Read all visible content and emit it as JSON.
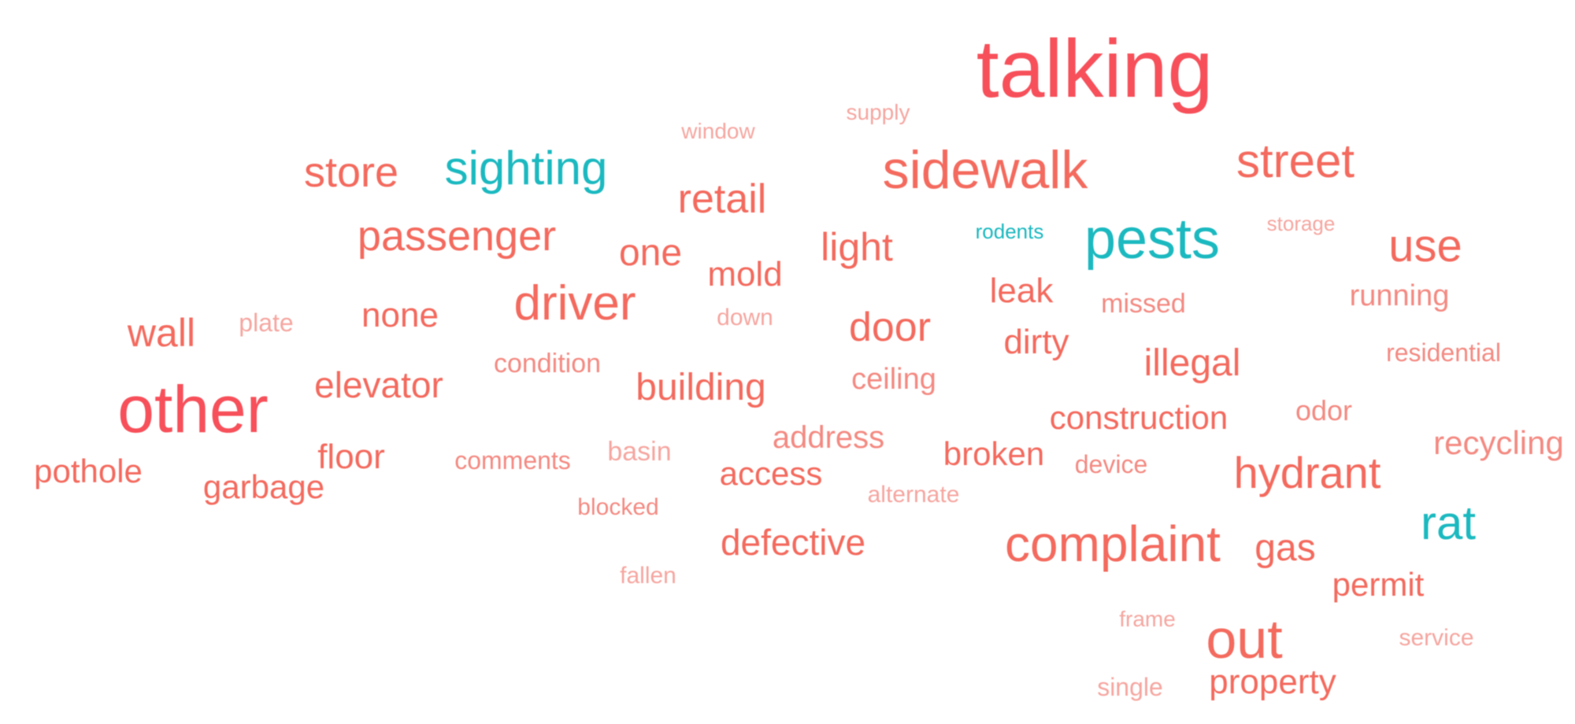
{
  "colors": {
    "red_strong": "#f7505a",
    "red": "#f46a5e",
    "red_light": "#f48a82",
    "red_faint": "#f6a6a0",
    "teal": "#1bb9c0",
    "background": "#ffffff"
  },
  "words": [
    {
      "text": "talking",
      "color": "red_strong"
    },
    {
      "text": "window",
      "color": "red_faint"
    },
    {
      "text": "supply",
      "color": "red_faint"
    },
    {
      "text": "store",
      "color": "red"
    },
    {
      "text": "sighting",
      "color": "teal"
    },
    {
      "text": "sidewalk",
      "color": "red"
    },
    {
      "text": "street",
      "color": "red"
    },
    {
      "text": "retail",
      "color": "red"
    },
    {
      "text": "passenger",
      "color": "red"
    },
    {
      "text": "one",
      "color": "red"
    },
    {
      "text": "light",
      "color": "red"
    },
    {
      "text": "rodents",
      "color": "teal"
    },
    {
      "text": "pests",
      "color": "teal"
    },
    {
      "text": "storage",
      "color": "red_faint"
    },
    {
      "text": "use",
      "color": "red"
    },
    {
      "text": "mold",
      "color": "red"
    },
    {
      "text": "driver",
      "color": "red"
    },
    {
      "text": "leak",
      "color": "red"
    },
    {
      "text": "missed",
      "color": "red_light"
    },
    {
      "text": "running",
      "color": "red_light"
    },
    {
      "text": "wall",
      "color": "red"
    },
    {
      "text": "plate",
      "color": "red_faint"
    },
    {
      "text": "none",
      "color": "red"
    },
    {
      "text": "down",
      "color": "red_faint"
    },
    {
      "text": "door",
      "color": "red"
    },
    {
      "text": "dirty",
      "color": "red"
    },
    {
      "text": "residential",
      "color": "red_light"
    },
    {
      "text": "condition",
      "color": "red_light"
    },
    {
      "text": "illegal",
      "color": "red"
    },
    {
      "text": "other",
      "color": "red_strong"
    },
    {
      "text": "elevator",
      "color": "red"
    },
    {
      "text": "building",
      "color": "red"
    },
    {
      "text": "ceiling",
      "color": "red_light"
    },
    {
      "text": "construction",
      "color": "red"
    },
    {
      "text": "odor",
      "color": "red_light"
    },
    {
      "text": "address",
      "color": "red_light"
    },
    {
      "text": "recycling",
      "color": "red_light"
    },
    {
      "text": "floor",
      "color": "red"
    },
    {
      "text": "basin",
      "color": "red_faint"
    },
    {
      "text": "broken",
      "color": "red"
    },
    {
      "text": "comments",
      "color": "red_light"
    },
    {
      "text": "device",
      "color": "red_light"
    },
    {
      "text": "hydrant",
      "color": "red"
    },
    {
      "text": "pothole",
      "color": "red"
    },
    {
      "text": "access",
      "color": "red"
    },
    {
      "text": "garbage",
      "color": "red"
    },
    {
      "text": "alternate",
      "color": "red_faint"
    },
    {
      "text": "blocked",
      "color": "red_light"
    },
    {
      "text": "rat",
      "color": "teal"
    },
    {
      "text": "defective",
      "color": "red"
    },
    {
      "text": "complaint",
      "color": "red"
    },
    {
      "text": "gas",
      "color": "red"
    },
    {
      "text": "fallen",
      "color": "red_faint"
    },
    {
      "text": "permit",
      "color": "red"
    },
    {
      "text": "frame",
      "color": "red_faint"
    },
    {
      "text": "out",
      "color": "red"
    },
    {
      "text": "service",
      "color": "red_faint"
    },
    {
      "text": "single",
      "color": "red_faint"
    },
    {
      "text": "property",
      "color": "red"
    }
  ]
}
